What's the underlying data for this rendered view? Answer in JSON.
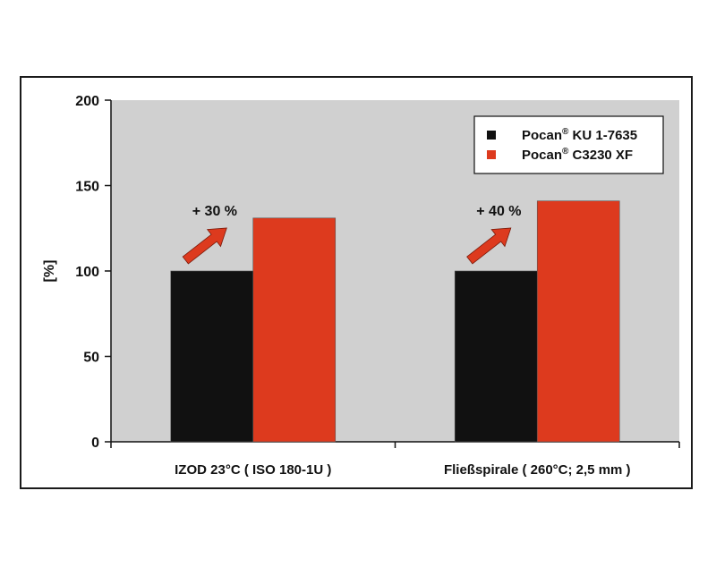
{
  "chart_data": {
    "type": "bar",
    "categories": [
      "IZOD 23°C ( ISO 180-1U )",
      "Fließspirale ( 260°C; 2,5 mm )"
    ],
    "series": [
      {
        "name": "Pocan® KU 1-7635",
        "name_base": "Pocan",
        "name_sup": "®",
        "name_rest": " KU 1-7635",
        "color": "#111111",
        "values": [
          100,
          100
        ]
      },
      {
        "name": "Pocan® C3230 XF",
        "name_base": "Pocan",
        "name_sup": "®",
        "name_rest": " C3230 XF",
        "color": "#dd3a1e",
        "values": [
          131,
          141
        ]
      }
    ],
    "annotations": [
      "+ 30 %",
      "+ 40 %"
    ],
    "ylabel": "[%]",
    "ylim": [
      0,
      200
    ],
    "yticks": [
      "0",
      "50",
      "100",
      "150",
      "200"
    ],
    "legend_position": "top-right",
    "plot_background": "#d0d0d0",
    "arrow_color": "#dd3a1e"
  }
}
